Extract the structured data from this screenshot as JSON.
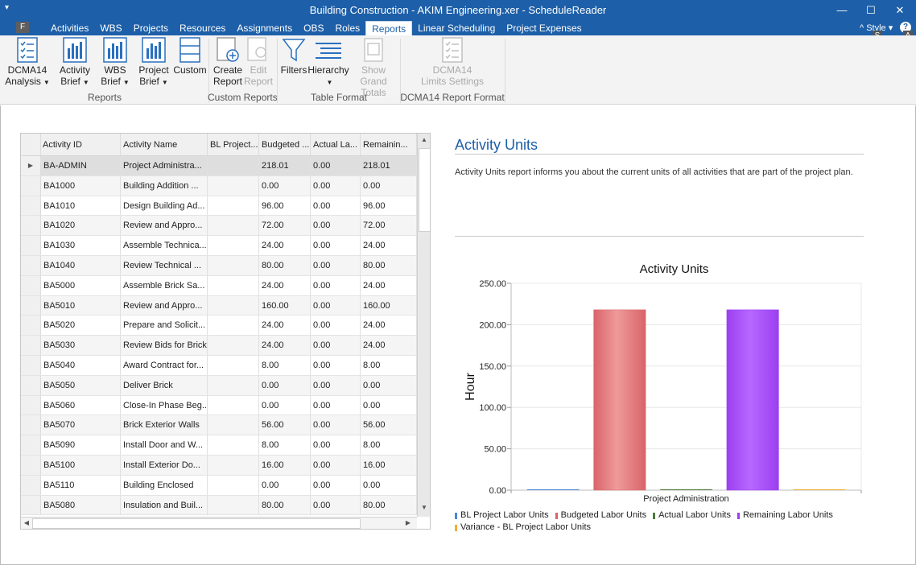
{
  "window": {
    "title": "Building Construction - AKIM Engineering.xer - ScheduleReader",
    "minimize": "—",
    "maximize": "☐",
    "close": "✕",
    "quick_access": "▾"
  },
  "file_tab": "F",
  "menu": [
    "Activities",
    "WBS",
    "Projects",
    "Resources",
    "Assignments",
    "OBS",
    "Roles",
    "Reports",
    "Linear Scheduling",
    "Project Expenses"
  ],
  "menu_active": "Reports",
  "style_menu": "^ Style ▾",
  "keytips": {
    "style": "S",
    "help": "A"
  },
  "ribbon": {
    "buttons": {
      "dcma_analysis": [
        "DCMA14",
        "Analysis"
      ],
      "activity_brief": [
        "Activity",
        "Brief"
      ],
      "wbs_brief": [
        "WBS",
        "Brief"
      ],
      "project_brief": [
        "Project",
        "Brief"
      ],
      "custom": "Custom",
      "create_report": [
        "Create",
        "Report"
      ],
      "edit_report": [
        "Edit",
        "Report"
      ],
      "filters": "Filters",
      "hierarchy": "Hierarchy",
      "show_grand_totals": [
        "Show Grand",
        "Totals"
      ],
      "dcma_limits": [
        "DCMA14",
        "Limits Settings"
      ]
    },
    "groups": {
      "reports": "Reports",
      "custom_reports": "Custom Reports",
      "table_format": "Table Format",
      "dcma_format": "DCMA14 Report Format"
    }
  },
  "grid": {
    "columns": [
      "Activity ID",
      "Activity Name",
      "BL Project...",
      "Budgeted ...",
      "Actual La...",
      "Remainin..."
    ],
    "rows": [
      [
        "BA-ADMIN",
        "Project Administra...",
        "",
        "218.01",
        "0.00",
        "218.01"
      ],
      [
        "BA1000",
        "Building Addition ...",
        "",
        "0.00",
        "0.00",
        "0.00"
      ],
      [
        "BA1010",
        "Design Building Ad...",
        "",
        "96.00",
        "0.00",
        "96.00"
      ],
      [
        "BA1020",
        "Review and Appro...",
        "",
        "72.00",
        "0.00",
        "72.00"
      ],
      [
        "BA1030",
        "Assemble Technica...",
        "",
        "24.00",
        "0.00",
        "24.00"
      ],
      [
        "BA1040",
        "Review Technical ...",
        "",
        "80.00",
        "0.00",
        "80.00"
      ],
      [
        "BA5000",
        "Assemble Brick Sa...",
        "",
        "24.00",
        "0.00",
        "24.00"
      ],
      [
        "BA5010",
        "Review and Appro...",
        "",
        "160.00",
        "0.00",
        "160.00"
      ],
      [
        "BA5020",
        "Prepare and Solicit...",
        "",
        "24.00",
        "0.00",
        "24.00"
      ],
      [
        "BA5030",
        "Review Bids for Brick",
        "",
        "24.00",
        "0.00",
        "24.00"
      ],
      [
        "BA5040",
        "Award Contract for...",
        "",
        "8.00",
        "0.00",
        "8.00"
      ],
      [
        "BA5050",
        "Deliver Brick",
        "",
        "0.00",
        "0.00",
        "0.00"
      ],
      [
        "BA5060",
        "Close-In Phase Beg...",
        "",
        "0.00",
        "0.00",
        "0.00"
      ],
      [
        "BA5070",
        "Brick Exterior Walls",
        "",
        "56.00",
        "0.00",
        "56.00"
      ],
      [
        "BA5090",
        "Install Door and W...",
        "",
        "8.00",
        "0.00",
        "8.00"
      ],
      [
        "BA5100",
        "Install Exterior Do...",
        "",
        "16.00",
        "0.00",
        "16.00"
      ],
      [
        "BA5110",
        "Building Enclosed",
        "",
        "0.00",
        "0.00",
        "0.00"
      ],
      [
        "BA5080",
        "Insulation and Buil...",
        "",
        "80.00",
        "0.00",
        "80.00"
      ]
    ],
    "selected_row_marker": "▶"
  },
  "report": {
    "title": "Activity Units",
    "description": "Activity Units report informs you about the current units of all activities that are part of the project plan."
  },
  "chart_data": {
    "type": "bar",
    "title": "Activity Units",
    "ylabel": "Hour",
    "xlabel": "",
    "ylim": [
      0,
      250
    ],
    "yticks": [
      "0.00",
      "50.00",
      "100.00",
      "150.00",
      "200.00",
      "250.00"
    ],
    "categories": [
      "Project Administration"
    ],
    "series": [
      {
        "name": "BL Project Labor Units",
        "values": [
          0
        ],
        "color": "#4a86d8"
      },
      {
        "name": "Budgeted Labor Units",
        "values": [
          218.01
        ],
        "color": "#d9646a"
      },
      {
        "name": "Actual Labor Units",
        "values": [
          0
        ],
        "color": "#4c7a3a"
      },
      {
        "name": "Remaining Labor Units",
        "values": [
          218.01
        ],
        "color": "#9b3ff0"
      },
      {
        "name": "Variance - BL Project Labor Units",
        "values": [
          0
        ],
        "color": "#f0b030"
      }
    ],
    "grid": true,
    "legend": "bottom"
  }
}
